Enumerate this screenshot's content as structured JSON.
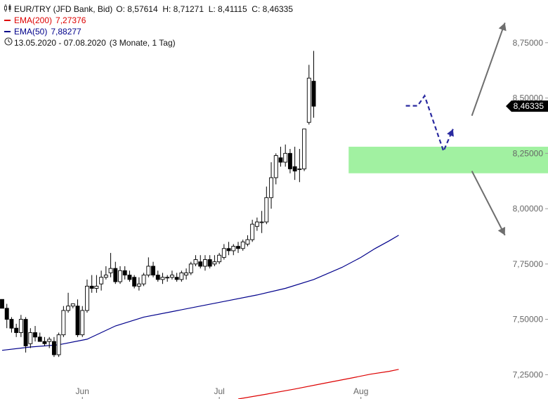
{
  "header": {
    "symbol_text": "EUR/TRY (JFD Bank, Bid)",
    "ohlc": "O: 8,57614  H: 8,71271  L: 8,41115  C: 8,46335",
    "ema200_label": "EMA(200)",
    "ema200_value": "7,27376",
    "ema50_label": "EMA(50)",
    "ema50_value": "7,88277",
    "period": "13.05.2020 - 07.08.2020",
    "interval": "(3 Monate, 1 Tag)"
  },
  "colors": {
    "ema200": "#dd0000",
    "ema50": "#00008b",
    "zone": "#90ee90",
    "forecast": "#2a2aa0",
    "arrows": "#6e6e6e",
    "price_tag": "#000000"
  },
  "chart_data": {
    "type": "candlestick",
    "ylim": [
      7.14,
      8.87
    ],
    "y_ticks": [
      {
        "value": 8.75,
        "label": "8,75000"
      },
      {
        "value": 8.5,
        "label": "8,50000"
      },
      {
        "value": 8.25,
        "label": "8,25000"
      },
      {
        "value": 8.0,
        "label": "8,00000"
      },
      {
        "value": 7.75,
        "label": "7,75000"
      },
      {
        "value": 7.5,
        "label": "7,50000"
      },
      {
        "value": 7.25,
        "label": "7,25000"
      }
    ],
    "x_labels": [
      {
        "index": 17,
        "label": "Jun"
      },
      {
        "index": 46,
        "label": "Jul"
      },
      {
        "index": 76,
        "label": "Aug"
      }
    ],
    "last_price_label": "8,46335",
    "last_price": 8.46335,
    "candles": [
      [
        7.59,
        7.59,
        7.55,
        7.55
      ],
      [
        7.55,
        7.57,
        7.46,
        7.5
      ],
      [
        7.5,
        7.51,
        7.44,
        7.46
      ],
      [
        7.46,
        7.48,
        7.42,
        7.44
      ],
      [
        7.44,
        7.52,
        7.42,
        7.5
      ],
      [
        7.5,
        7.51,
        7.35,
        7.38
      ],
      [
        7.39,
        7.46,
        7.37,
        7.44
      ],
      [
        7.44,
        7.47,
        7.4,
        7.42
      ],
      [
        7.42,
        7.44,
        7.4,
        7.4
      ],
      [
        7.4,
        7.42,
        7.38,
        7.39
      ],
      [
        7.4,
        7.42,
        7.37,
        7.41
      ],
      [
        7.4,
        7.42,
        7.33,
        7.34
      ],
      [
        7.34,
        7.44,
        7.33,
        7.43
      ],
      [
        7.43,
        7.56,
        7.42,
        7.54
      ],
      [
        7.54,
        7.62,
        7.53,
        7.56
      ],
      [
        7.56,
        7.57,
        7.55,
        7.57
      ],
      [
        7.56,
        7.59,
        7.42,
        7.43
      ],
      [
        7.43,
        7.56,
        7.42,
        7.54
      ],
      [
        7.54,
        7.68,
        7.53,
        7.65
      ],
      [
        7.65,
        7.7,
        7.62,
        7.64
      ],
      [
        7.64,
        7.7,
        7.62,
        7.65
      ],
      [
        7.66,
        7.72,
        7.63,
        7.69
      ],
      [
        7.69,
        7.74,
        7.68,
        7.7
      ],
      [
        7.71,
        7.8,
        7.69,
        7.73
      ],
      [
        7.73,
        7.76,
        7.66,
        7.67
      ],
      [
        7.67,
        7.74,
        7.66,
        7.72
      ],
      [
        7.72,
        7.74,
        7.68,
        7.7
      ],
      [
        7.7,
        7.72,
        7.67,
        7.68
      ],
      [
        7.69,
        7.7,
        7.64,
        7.65
      ],
      [
        7.65,
        7.69,
        7.63,
        7.66
      ],
      [
        7.66,
        7.71,
        7.65,
        7.7
      ],
      [
        7.7,
        7.78,
        7.69,
        7.74
      ],
      [
        7.74,
        7.76,
        7.69,
        7.7
      ],
      [
        7.7,
        7.72,
        7.67,
        7.68
      ],
      [
        7.68,
        7.71,
        7.66,
        7.69
      ],
      [
        7.69,
        7.7,
        7.67,
        7.69
      ],
      [
        7.69,
        7.72,
        7.68,
        7.7
      ],
      [
        7.69,
        7.71,
        7.67,
        7.68
      ],
      [
        7.68,
        7.72,
        7.67,
        7.71
      ],
      [
        7.7,
        7.73,
        7.68,
        7.71
      ],
      [
        7.71,
        7.76,
        7.7,
        7.75
      ],
      [
        7.75,
        7.79,
        7.74,
        7.77
      ],
      [
        7.76,
        7.79,
        7.73,
        7.74
      ],
      [
        7.74,
        7.79,
        7.72,
        7.77
      ],
      [
        7.77,
        7.79,
        7.73,
        7.74
      ],
      [
        7.75,
        7.79,
        7.74,
        7.76
      ],
      [
        7.76,
        7.8,
        7.75,
        7.79
      ],
      [
        7.78,
        7.84,
        7.77,
        7.82
      ],
      [
        7.82,
        7.85,
        7.79,
        7.81
      ],
      [
        7.81,
        7.84,
        7.79,
        7.83
      ],
      [
        7.83,
        7.85,
        7.8,
        7.82
      ],
      [
        7.82,
        7.86,
        7.81,
        7.85
      ],
      [
        7.84,
        7.88,
        7.83,
        7.86
      ],
      [
        7.86,
        7.95,
        7.85,
        7.93
      ],
      [
        7.92,
        7.96,
        7.9,
        7.94
      ],
      [
        7.94,
        7.99,
        7.89,
        7.94
      ],
      [
        7.94,
        8.1,
        7.93,
        8.05
      ],
      [
        8.05,
        8.21,
        8.0,
        8.14
      ],
      [
        8.14,
        8.25,
        8.11,
        8.24
      ],
      [
        8.23,
        8.28,
        8.19,
        8.21
      ],
      [
        8.21,
        8.29,
        8.19,
        8.25
      ],
      [
        8.25,
        8.27,
        8.16,
        8.18
      ],
      [
        8.19,
        8.28,
        8.13,
        8.17
      ],
      [
        8.18,
        8.27,
        8.12,
        8.18
      ],
      [
        8.18,
        8.36,
        8.17,
        8.36
      ],
      [
        8.39,
        8.65,
        8.38,
        8.59
      ],
      [
        8.576,
        8.713,
        8.411,
        8.463
      ]
    ],
    "candle_index_offset": 0,
    "ema50": [
      [
        0,
        7.36
      ],
      [
        6,
        7.375
      ],
      [
        12,
        7.385
      ],
      [
        18,
        7.41
      ],
      [
        24,
        7.47
      ],
      [
        30,
        7.51
      ],
      [
        36,
        7.535
      ],
      [
        42,
        7.56
      ],
      [
        48,
        7.585
      ],
      [
        54,
        7.61
      ],
      [
        60,
        7.64
      ],
      [
        66,
        7.68
      ],
      [
        72,
        7.735
      ],
      [
        76,
        7.78
      ],
      [
        79,
        7.82
      ],
      [
        82,
        7.855
      ],
      [
        84,
        7.88
      ]
    ],
    "ema200": [
      [
        50,
        7.14
      ],
      [
        56,
        7.162
      ],
      [
        62,
        7.185
      ],
      [
        68,
        7.21
      ],
      [
        74,
        7.235
      ],
      [
        78,
        7.252
      ],
      [
        82,
        7.265
      ],
      [
        84,
        7.274
      ]
    ],
    "zone": [
      8.16,
      8.28
    ],
    "forecast_path": [
      [
        85.5,
        8.465
      ],
      [
        88,
        8.465
      ],
      [
        89.5,
        8.51
      ],
      [
        93.5,
        8.26
      ],
      [
        95.5,
        8.36
      ]
    ],
    "up_arrow": [
      [
        99.5,
        8.42
      ],
      [
        106.5,
        8.84
      ]
    ],
    "down_arrow": [
      [
        99.5,
        8.17
      ],
      [
        106.5,
        7.88
      ]
    ]
  }
}
